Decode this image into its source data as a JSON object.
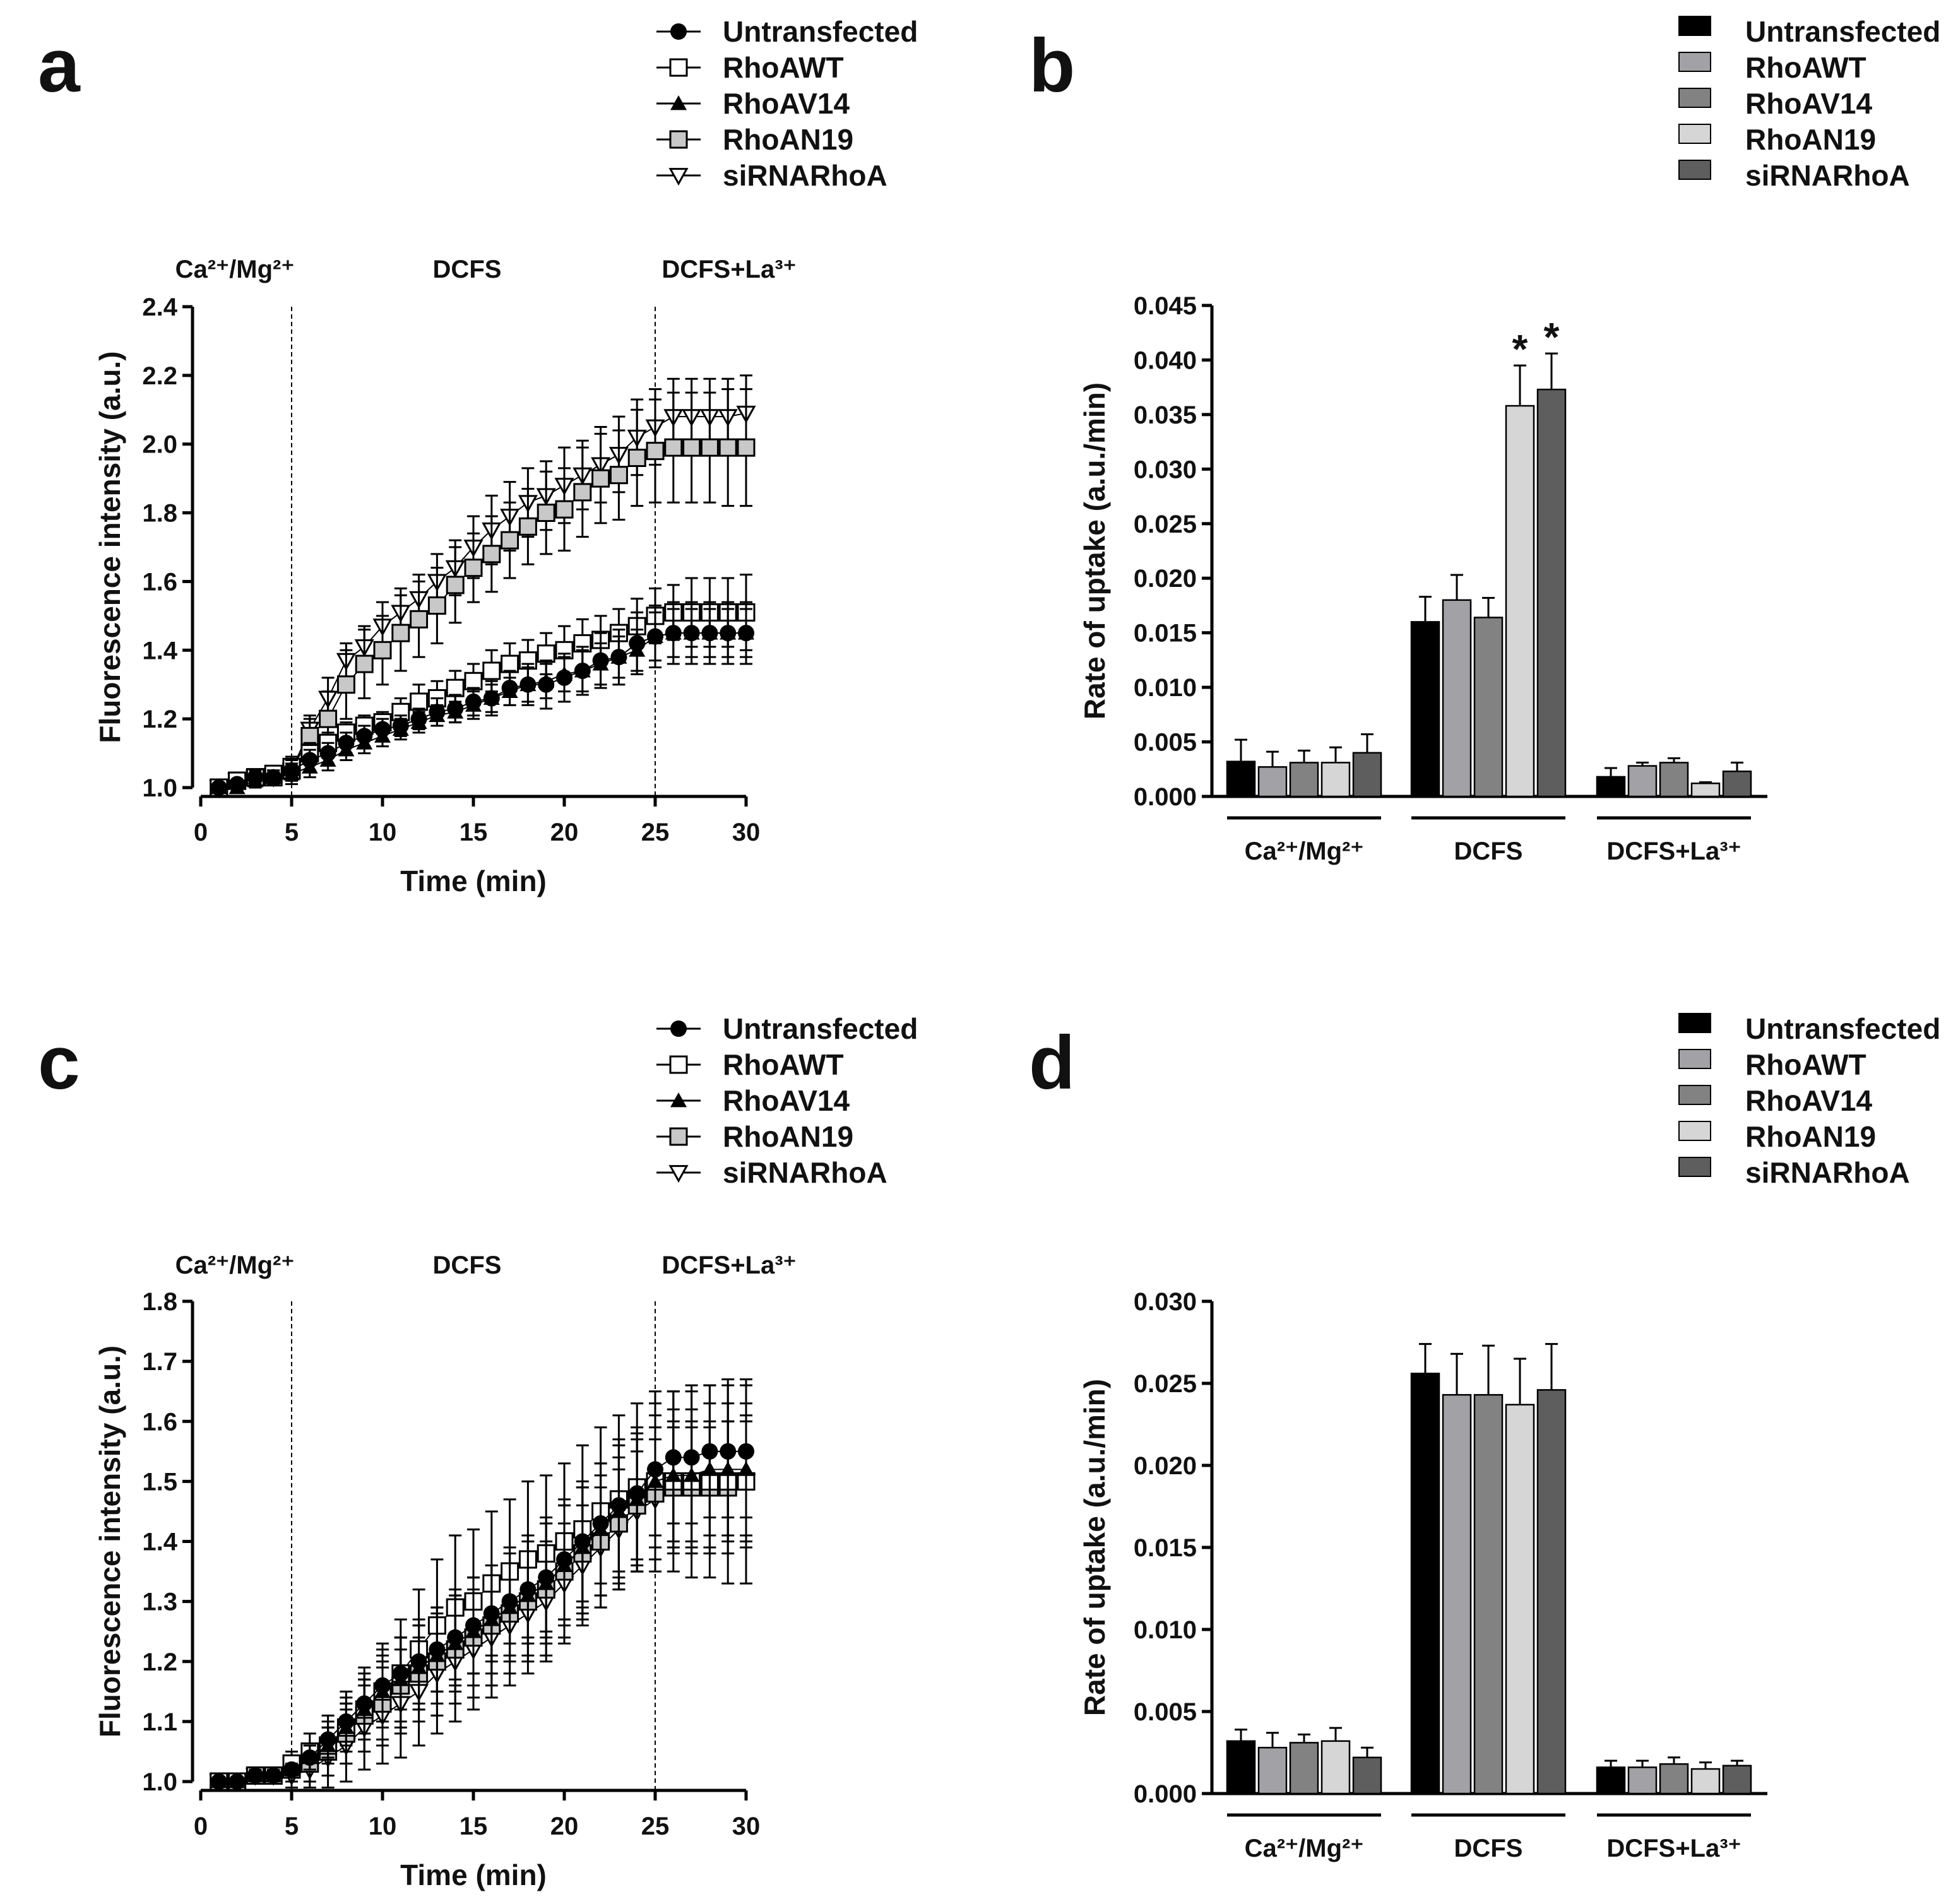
{
  "series_names": [
    "Untransfected",
    "RhoAWT",
    "RhoAV14",
    "RhoAN19",
    "siRNARhoA"
  ],
  "colors": {
    "bars": [
      "#000000",
      "#a2a2a6",
      "#828282",
      "#d6d6d6",
      "#5e5e5e"
    ],
    "marker_grey": "#c8c8c8"
  },
  "chart_data": [
    {
      "panel": "a",
      "type": "line",
      "xlabel": "Time (min)",
      "ylabel": "Fluorescence intensity (a.u.)",
      "xlim": [
        0,
        30
      ],
      "ylim": [
        1.0,
        2.4
      ],
      "xticks": [
        "0",
        "5",
        "10",
        "15",
        "20",
        "25",
        "30"
      ],
      "yticks": [
        "1.0",
        "1.2",
        "1.4",
        "1.6",
        "1.8",
        "2.0",
        "2.2",
        "2.4"
      ],
      "phases": [
        "Ca²⁺/Mg²⁺",
        "DCFS",
        "DCFS+La³⁺"
      ],
      "phase_boundaries": [
        5,
        25
      ],
      "legend_position": "top-right",
      "x": [
        1,
        2,
        3,
        4,
        5,
        6,
        7,
        8,
        9,
        10,
        11,
        12,
        13,
        14,
        15,
        16,
        17,
        18,
        19,
        20,
        21,
        22,
        23,
        24,
        25,
        26,
        27,
        28,
        29,
        30
      ],
      "series": [
        {
          "name": "Untransfected",
          "marker": "circle-filled",
          "values": [
            1.0,
            1.01,
            1.03,
            1.03,
            1.05,
            1.08,
            1.1,
            1.13,
            1.15,
            1.17,
            1.18,
            1.2,
            1.22,
            1.23,
            1.25,
            1.26,
            1.29,
            1.3,
            1.3,
            1.32,
            1.34,
            1.37,
            1.38,
            1.42,
            1.44,
            1.45,
            1.45,
            1.45,
            1.45,
            1.45
          ],
          "err": [
            0.01,
            0.01,
            0.02,
            0.02,
            0.03,
            0.03,
            0.03,
            0.03,
            0.03,
            0.03,
            0.03,
            0.03,
            0.04,
            0.04,
            0.04,
            0.05,
            0.05,
            0.06,
            0.07,
            0.07,
            0.07,
            0.08,
            0.08,
            0.09,
            0.09,
            0.09,
            0.09,
            0.09,
            0.09,
            0.09
          ]
        },
        {
          "name": "RhoAWT",
          "marker": "square-open",
          "values": [
            1.0,
            1.02,
            1.03,
            1.04,
            1.06,
            1.1,
            1.13,
            1.16,
            1.18,
            1.19,
            1.22,
            1.25,
            1.26,
            1.29,
            1.31,
            1.34,
            1.36,
            1.37,
            1.39,
            1.4,
            1.42,
            1.43,
            1.45,
            1.47,
            1.5,
            1.51,
            1.51,
            1.51,
            1.51,
            1.51
          ],
          "err": [
            0.01,
            0.01,
            0.02,
            0.02,
            0.03,
            0.03,
            0.03,
            0.03,
            0.03,
            0.03,
            0.04,
            0.05,
            0.05,
            0.05,
            0.05,
            0.06,
            0.06,
            0.06,
            0.06,
            0.07,
            0.07,
            0.07,
            0.07,
            0.08,
            0.08,
            0.08,
            0.1,
            0.1,
            0.1,
            0.11
          ]
        },
        {
          "name": "RhoAV14",
          "marker": "triangle-up-filled",
          "values": [
            1.0,
            1.0,
            1.02,
            1.03,
            1.04,
            1.06,
            1.08,
            1.11,
            1.13,
            1.15,
            1.17,
            1.19,
            1.21,
            1.22,
            1.24,
            1.26,
            1.28,
            1.3,
            1.31,
            1.33,
            1.34,
            1.36,
            1.38,
            1.4,
            1.44,
            1.45,
            1.45,
            1.45,
            1.45,
            1.45
          ],
          "err": [
            0.01,
            0.01,
            0.02,
            0.02,
            0.03,
            0.03,
            0.03,
            0.03,
            0.03,
            0.03,
            0.03,
            0.03,
            0.03,
            0.03,
            0.04,
            0.04,
            0.04,
            0.05,
            0.05,
            0.05,
            0.06,
            0.06,
            0.06,
            0.06,
            0.07,
            0.07,
            0.07,
            0.07,
            0.07,
            0.07
          ]
        },
        {
          "name": "RhoAN19",
          "marker": "square-grey",
          "values": [
            1.0,
            1.02,
            1.03,
            1.03,
            1.05,
            1.15,
            1.2,
            1.3,
            1.36,
            1.4,
            1.45,
            1.49,
            1.53,
            1.59,
            1.64,
            1.68,
            1.72,
            1.76,
            1.8,
            1.81,
            1.86,
            1.9,
            1.91,
            1.96,
            1.98,
            1.99,
            1.99,
            1.99,
            1.99,
            1.99
          ],
          "err": [
            0.01,
            0.01,
            0.02,
            0.02,
            0.03,
            0.05,
            0.08,
            0.1,
            0.1,
            0.1,
            0.11,
            0.11,
            0.11,
            0.11,
            0.1,
            0.11,
            0.11,
            0.11,
            0.12,
            0.12,
            0.13,
            0.13,
            0.13,
            0.14,
            0.15,
            0.16,
            0.16,
            0.16,
            0.17,
            0.17
          ]
        },
        {
          "name": "siRNARhoA",
          "marker": "triangle-down-open",
          "values": [
            1.0,
            1.02,
            1.03,
            1.03,
            1.05,
            1.17,
            1.26,
            1.37,
            1.41,
            1.47,
            1.51,
            1.55,
            1.6,
            1.64,
            1.7,
            1.75,
            1.79,
            1.83,
            1.85,
            1.88,
            1.91,
            1.94,
            1.97,
            2.02,
            2.05,
            2.08,
            2.08,
            2.08,
            2.08,
            2.09
          ],
          "err": [
            0.01,
            0.01,
            0.02,
            0.02,
            0.03,
            0.04,
            0.06,
            0.05,
            0.06,
            0.07,
            0.07,
            0.07,
            0.08,
            0.08,
            0.09,
            0.1,
            0.1,
            0.1,
            0.1,
            0.11,
            0.1,
            0.11,
            0.11,
            0.11,
            0.11,
            0.11,
            0.11,
            0.11,
            0.11,
            0.11
          ]
        }
      ]
    },
    {
      "panel": "b",
      "type": "bar",
      "ylabel": "Rate of uptake (a.u./min)",
      "ylim": [
        0,
        0.045
      ],
      "yticks": [
        "0.000",
        "0.005",
        "0.010",
        "0.015",
        "0.020",
        "0.025",
        "0.030",
        "0.035",
        "0.040",
        "0.045"
      ],
      "categories": [
        "Ca²⁺/Mg²⁺",
        "DCFS",
        "DCFS+La³⁺"
      ],
      "legend_position": "top-right",
      "series": [
        {
          "name": "Untransfected",
          "values": [
            0.0032,
            0.016,
            0.0018
          ],
          "err": [
            0.002,
            0.0023,
            0.0008
          ]
        },
        {
          "name": "RhoAWT",
          "values": [
            0.0027,
            0.018,
            0.0028
          ],
          "err": [
            0.0014,
            0.0023,
            0.0003
          ]
        },
        {
          "name": "RhoAV14",
          "values": [
            0.0031,
            0.0164,
            0.0031
          ],
          "err": [
            0.0011,
            0.0018,
            0.0004
          ]
        },
        {
          "name": "RhoAN19",
          "values": [
            0.0031,
            0.0358,
            0.0012
          ],
          "err": [
            0.0014,
            0.0037,
            0.0001
          ]
        },
        {
          "name": "siRNARhoA",
          "values": [
            0.004,
            0.0373,
            0.0023
          ],
          "err": [
            0.0017,
            0.0033,
            0.0008
          ]
        }
      ],
      "annotations": [
        {
          "series": "RhoAN19",
          "category": "DCFS",
          "text": "*"
        },
        {
          "series": "siRNARhoA",
          "category": "DCFS",
          "text": "*"
        }
      ]
    },
    {
      "panel": "c",
      "type": "line",
      "xlabel": "Time (min)",
      "ylabel": "Fluorescence intensity (a.u.)",
      "xlim": [
        0,
        30
      ],
      "ylim": [
        1.0,
        1.8
      ],
      "xticks": [
        "0",
        "5",
        "10",
        "15",
        "20",
        "25",
        "30"
      ],
      "yticks": [
        "1.0",
        "1.1",
        "1.2",
        "1.3",
        "1.4",
        "1.5",
        "1.6",
        "1.7",
        "1.8"
      ],
      "phases": [
        "Ca²⁺/Mg²⁺",
        "DCFS",
        "DCFS+La³⁺"
      ],
      "phase_boundaries": [
        5,
        25
      ],
      "legend_position": "top-right",
      "x": [
        1,
        2,
        3,
        4,
        5,
        6,
        7,
        8,
        9,
        10,
        11,
        12,
        13,
        14,
        15,
        16,
        17,
        18,
        19,
        20,
        21,
        22,
        23,
        24,
        25,
        26,
        27,
        28,
        29,
        30
      ],
      "series": [
        {
          "name": "Untransfected",
          "marker": "circle-filled",
          "values": [
            1.0,
            1.0,
            1.01,
            1.01,
            1.02,
            1.04,
            1.07,
            1.1,
            1.13,
            1.16,
            1.18,
            1.2,
            1.22,
            1.24,
            1.26,
            1.28,
            1.3,
            1.32,
            1.34,
            1.37,
            1.4,
            1.43,
            1.46,
            1.48,
            1.52,
            1.54,
            1.54,
            1.55,
            1.55,
            1.55
          ],
          "err": [
            0.005,
            0.005,
            0.01,
            0.01,
            0.01,
            0.02,
            0.03,
            0.04,
            0.05,
            0.06,
            0.06,
            0.07,
            0.07,
            0.08,
            0.08,
            0.08,
            0.09,
            0.09,
            0.1,
            0.1,
            0.1,
            0.1,
            0.11,
            0.11,
            0.11,
            0.11,
            0.11,
            0.11,
            0.11,
            0.11
          ]
        },
        {
          "name": "RhoAWT",
          "marker": "square-open",
          "values": [
            1.0,
            1.0,
            1.01,
            1.01,
            1.03,
            1.05,
            1.06,
            1.09,
            1.12,
            1.15,
            1.18,
            1.22,
            1.26,
            1.29,
            1.3,
            1.33,
            1.35,
            1.37,
            1.38,
            1.4,
            1.42,
            1.45,
            1.47,
            1.49,
            1.5,
            1.5,
            1.5,
            1.5,
            1.5,
            1.5
          ],
          "err": [
            0.005,
            0.005,
            0.01,
            0.01,
            0.02,
            0.03,
            0.05,
            0.06,
            0.07,
            0.08,
            0.09,
            0.1,
            0.11,
            0.12,
            0.12,
            0.12,
            0.12,
            0.13,
            0.13,
            0.13,
            0.14,
            0.14,
            0.14,
            0.14,
            0.15,
            0.15,
            0.16,
            0.16,
            0.17,
            0.17
          ]
        },
        {
          "name": "RhoAV14",
          "marker": "triangle-up-filled",
          "values": [
            1.0,
            1.0,
            1.01,
            1.01,
            1.02,
            1.04,
            1.06,
            1.09,
            1.12,
            1.15,
            1.17,
            1.19,
            1.21,
            1.23,
            1.25,
            1.27,
            1.29,
            1.31,
            1.33,
            1.36,
            1.39,
            1.42,
            1.45,
            1.47,
            1.5,
            1.51,
            1.51,
            1.52,
            1.52,
            1.52
          ],
          "err": [
            0.005,
            0.005,
            0.01,
            0.01,
            0.01,
            0.02,
            0.03,
            0.04,
            0.05,
            0.06,
            0.07,
            0.07,
            0.08,
            0.08,
            0.09,
            0.09,
            0.09,
            0.1,
            0.1,
            0.1,
            0.1,
            0.11,
            0.11,
            0.11,
            0.11,
            0.11,
            0.11,
            0.11,
            0.11,
            0.11
          ]
        },
        {
          "name": "RhoAN19",
          "marker": "square-grey",
          "values": [
            1.0,
            1.0,
            1.01,
            1.01,
            1.02,
            1.03,
            1.05,
            1.08,
            1.11,
            1.13,
            1.16,
            1.18,
            1.2,
            1.22,
            1.24,
            1.26,
            1.28,
            1.3,
            1.32,
            1.35,
            1.38,
            1.4,
            1.43,
            1.46,
            1.48,
            1.49,
            1.49,
            1.49,
            1.49,
            1.5
          ],
          "err": [
            0.005,
            0.005,
            0.01,
            0.01,
            0.02,
            0.03,
            0.04,
            0.05,
            0.06,
            0.07,
            0.08,
            0.08,
            0.09,
            0.09,
            0.1,
            0.1,
            0.1,
            0.1,
            0.11,
            0.11,
            0.11,
            0.11,
            0.11,
            0.11,
            0.11,
            0.11,
            0.11,
            0.11,
            0.11,
            0.11
          ]
        },
        {
          "name": "siRNARhoA",
          "marker": "triangle-down-open",
          "values": [
            1.0,
            1.0,
            1.01,
            1.01,
            1.01,
            1.02,
            1.04,
            1.06,
            1.09,
            1.11,
            1.13,
            1.15,
            1.18,
            1.2,
            1.22,
            1.24,
            1.26,
            1.28,
            1.3,
            1.33,
            1.36,
            1.39,
            1.42,
            1.45,
            1.47,
            1.49,
            1.49,
            1.49,
            1.5,
            1.5
          ],
          "err": [
            0.005,
            0.005,
            0.01,
            0.01,
            0.02,
            0.03,
            0.05,
            0.06,
            0.07,
            0.08,
            0.09,
            0.09,
            0.1,
            0.1,
            0.1,
            0.1,
            0.1,
            0.1,
            0.1,
            0.1,
            0.1,
            0.1,
            0.1,
            0.1,
            0.1,
            0.1,
            0.1,
            0.1,
            0.1,
            0.1
          ]
        }
      ]
    },
    {
      "panel": "d",
      "type": "bar",
      "ylabel": "Rate of uptake (a.u./min)",
      "ylim": [
        0,
        0.03
      ],
      "yticks": [
        "0.000",
        "0.005",
        "0.010",
        "0.015",
        "0.020",
        "0.025",
        "0.030"
      ],
      "categories": [
        "Ca²⁺/Mg²⁺",
        "DCFS",
        "DCFS+La³⁺"
      ],
      "legend_position": "top-right",
      "series": [
        {
          "name": "Untransfected",
          "values": [
            0.0032,
            0.0256,
            0.0016
          ],
          "err": [
            0.0007,
            0.0018,
            0.0004
          ]
        },
        {
          "name": "RhoAWT",
          "values": [
            0.0028,
            0.0243,
            0.0016
          ],
          "err": [
            0.0009,
            0.0025,
            0.0004
          ]
        },
        {
          "name": "RhoAV14",
          "values": [
            0.0031,
            0.0243,
            0.0018
          ],
          "err": [
            0.0005,
            0.003,
            0.0004
          ]
        },
        {
          "name": "RhoAN19",
          "values": [
            0.0032,
            0.0237,
            0.0015
          ],
          "err": [
            0.0008,
            0.0028,
            0.0004
          ]
        },
        {
          "name": "siRNARhoA",
          "values": [
            0.0022,
            0.0246,
            0.0017
          ],
          "err": [
            0.0006,
            0.0028,
            0.0003
          ]
        }
      ],
      "annotations": []
    }
  ]
}
